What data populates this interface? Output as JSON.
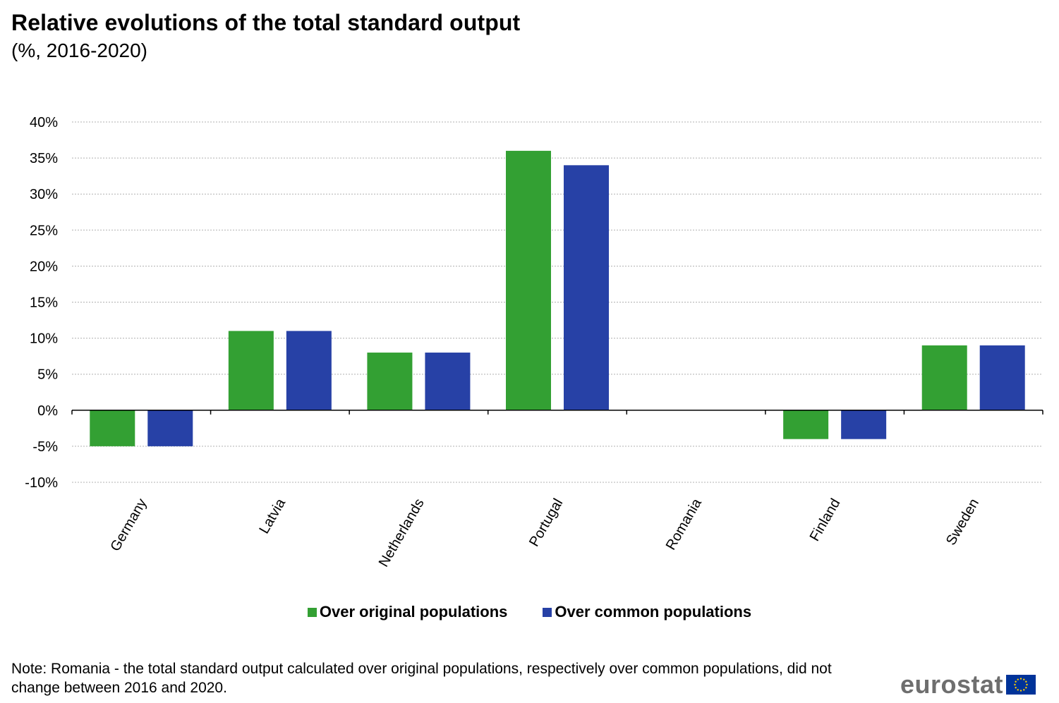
{
  "title": "Relative evolutions of the total standard output",
  "subtitle": "(%, 2016-2020)",
  "note": "Note: Romania - the total standard output calculated over original populations, respectively over common populations, did not change between 2016 and 2020.",
  "logo": {
    "text": "eurostat",
    "flag_color": "#003399",
    "star_color": "#ffcc00"
  },
  "chart_data": {
    "type": "bar",
    "categories": [
      "Germany",
      "Latvia",
      "Netherlands",
      "Portugal",
      "Romania",
      "Finland",
      "Sweden"
    ],
    "series": [
      {
        "name": "Over original populations",
        "color": "#33a033",
        "values": [
          -5,
          11,
          8,
          36,
          0,
          -4,
          9
        ]
      },
      {
        "name": "Over common populations",
        "color": "#2741a6",
        "values": [
          -5,
          11,
          8,
          34,
          0,
          -4,
          9
        ]
      }
    ],
    "ylim": [
      -10,
      40
    ],
    "yticks": [
      -10,
      -5,
      0,
      5,
      10,
      15,
      20,
      25,
      30,
      35,
      40
    ],
    "ytick_labels": [
      "-10%",
      "-5%",
      "0%",
      "5%",
      "10%",
      "15%",
      "20%",
      "25%",
      "30%",
      "35%",
      "40%"
    ],
    "grid": true,
    "legend_position": "bottom"
  }
}
